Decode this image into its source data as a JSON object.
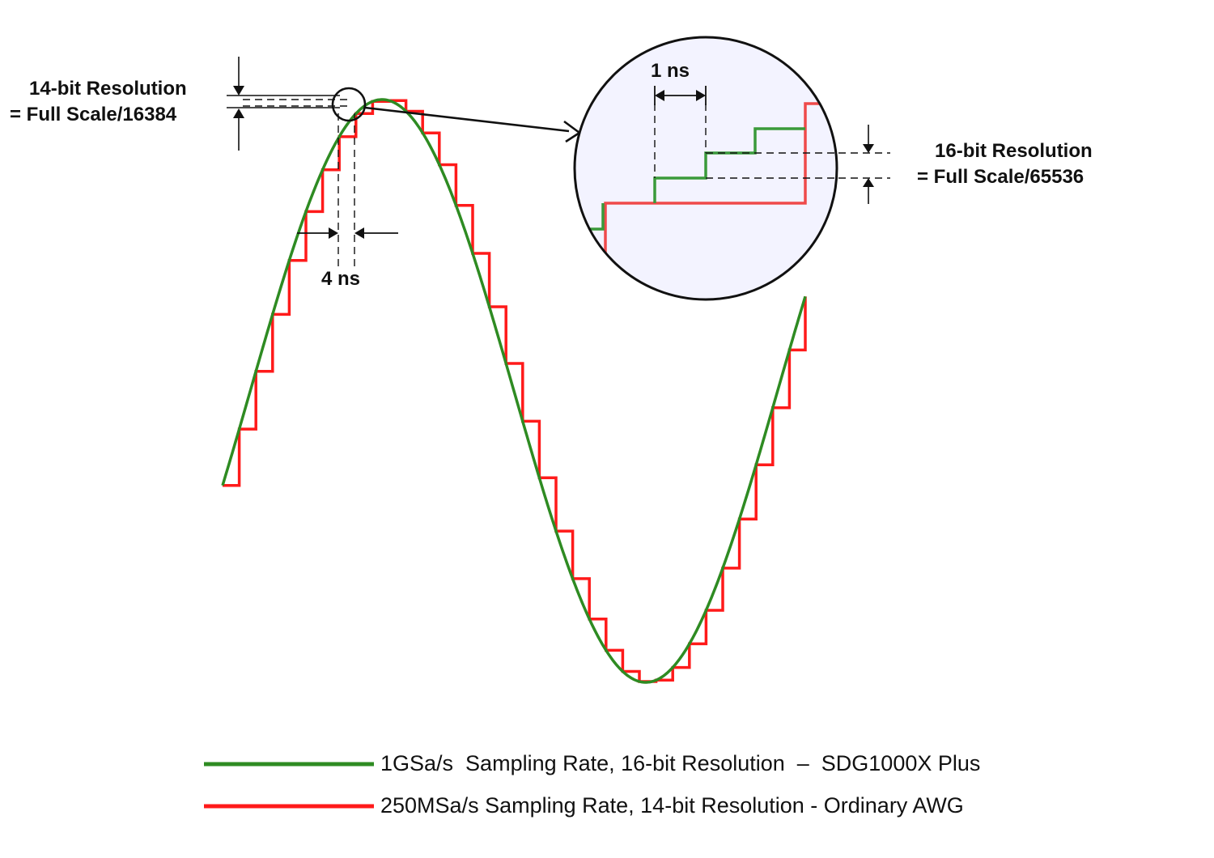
{
  "colors": {
    "fine_wave": "#2e8b22",
    "coarse_wave": "#ff1a1a",
    "zoom_fill": "#f3f3ff",
    "annotation": "#111111"
  },
  "annotations": {
    "res14_line1": "14-bit Resolution",
    "res14_line2": "= Full Scale/16384",
    "res16_line1": "16-bit Resolution",
    "res16_line2": "= Full Scale/65536",
    "time_coarse": "4 ns",
    "time_fine": "1 ns"
  },
  "legend": [
    {
      "label": "1GSa/s  Sampling Rate, 16-bit Resolution  –  SDG1000X Plus",
      "color": "#2e8b22"
    },
    {
      "label": "250MSa/s Sampling Rate, 14-bit Resolution - Ordinary AWG",
      "color": "#ff1a1a"
    }
  ]
}
